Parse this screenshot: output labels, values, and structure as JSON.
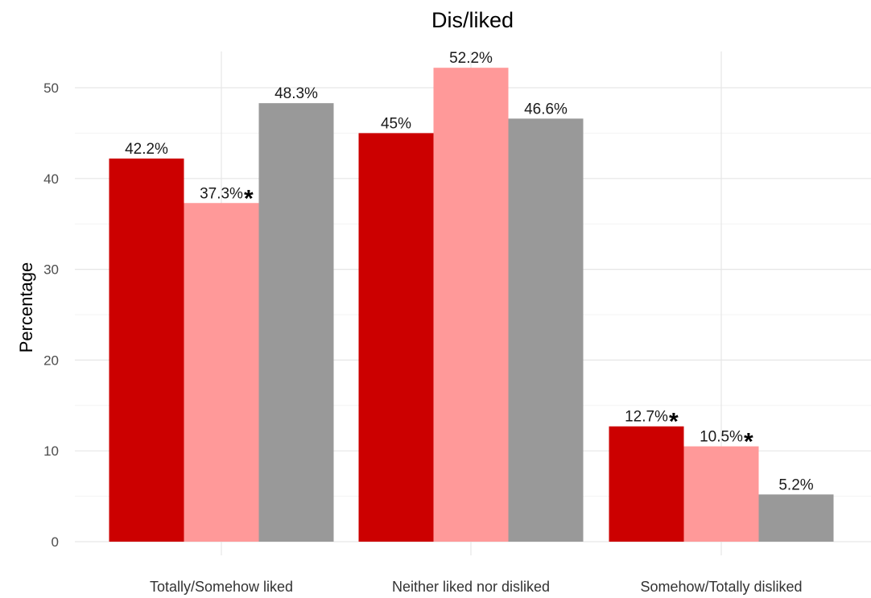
{
  "chart_data": {
    "type": "bar",
    "title": "Dis/liked",
    "xlabel": "",
    "ylabel": "Percentage",
    "ylim": [
      0,
      54
    ],
    "yticks": [
      0,
      10,
      20,
      30,
      40,
      50
    ],
    "grid": true,
    "legend": "none",
    "categories": [
      "Totally/Somehow liked",
      "Neither liked nor disliked",
      "Somehow/Totally disliked"
    ],
    "series": [
      {
        "color": "#cc0000",
        "values": [
          42.2,
          45,
          12.7
        ],
        "labels": [
          "42.2%",
          "45%",
          "12.7%"
        ],
        "starred": [
          false,
          false,
          true
        ]
      },
      {
        "color": "#ff9999",
        "values": [
          37.3,
          52.2,
          10.5
        ],
        "labels": [
          "37.3%",
          "52.2%",
          "10.5%"
        ],
        "starred": [
          true,
          false,
          true
        ]
      },
      {
        "color": "#999999",
        "values": [
          48.3,
          46.6,
          5.2
        ],
        "labels": [
          "48.3%",
          "46.6%",
          "5.2%"
        ],
        "starred": [
          false,
          false,
          false
        ]
      }
    ],
    "star_symbol": "*"
  }
}
